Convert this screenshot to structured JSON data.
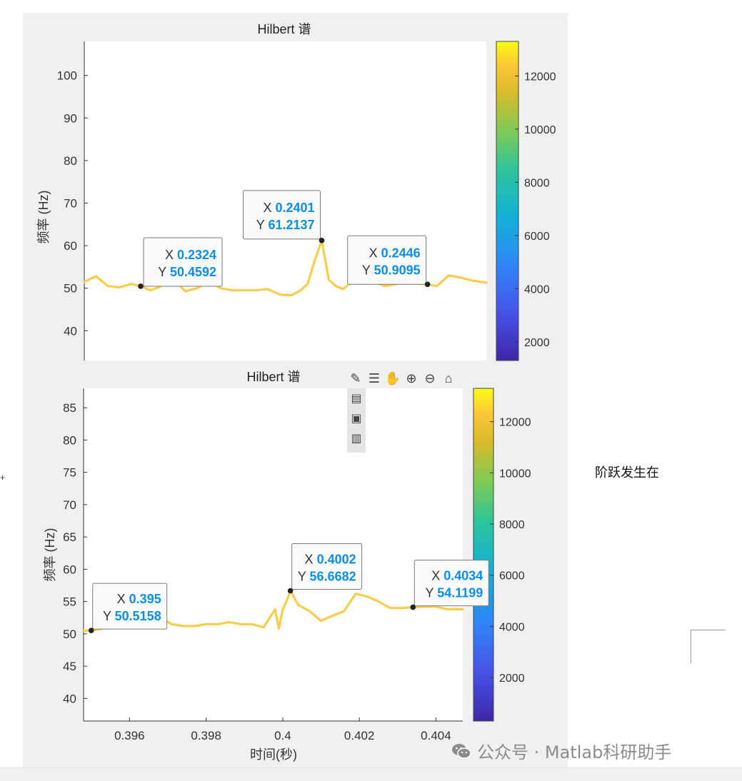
{
  "side_note": "阶跃发生在",
  "left_mark": "+",
  "watermark": {
    "text": "公众号 · Matlab科研助手",
    "icon": "wechat-icon"
  },
  "toolbar": {
    "icons": [
      "brush-icon",
      "legend-icon",
      "pan-hand-icon",
      "zoom-in-icon",
      "zoom-out-icon",
      "home-icon"
    ],
    "vertical_icons": [
      "save-icon",
      "copy-image-icon",
      "copy-vector-icon"
    ]
  },
  "colors": {
    "curve": "#f7cd4b",
    "datatip_value": "#0b8fe6",
    "marker": "#222222"
  },
  "chart_data": [
    {
      "type": "line",
      "title": "Hilbert 谱",
      "xlabel": "",
      "ylabel": "频率 (Hz)",
      "xlim": [
        0.23,
        0.2471
      ],
      "ylim": [
        33,
        108
      ],
      "yticks": [
        40,
        50,
        60,
        70,
        80,
        90,
        100
      ],
      "series": [
        {
          "x": [
            0.23,
            0.2305,
            0.231,
            0.2315,
            0.232,
            0.2324,
            0.2328,
            0.2333,
            0.2338,
            0.2343,
            0.2348,
            0.2353,
            0.2358,
            0.2363,
            0.2368,
            0.2373,
            0.2378,
            0.2383,
            0.2388,
            0.2392,
            0.2395,
            0.2398,
            0.2401,
            0.2404,
            0.2407,
            0.241,
            0.2414,
            0.2418,
            0.2423,
            0.2428,
            0.2433,
            0.2438,
            0.2442,
            0.2446,
            0.245,
            0.2455,
            0.246,
            0.2465,
            0.2471
          ],
          "y": [
            51.5,
            52.8,
            50.5,
            50.2,
            51.0,
            50.5,
            49.5,
            50.5,
            52.0,
            49.3,
            50.0,
            51.5,
            50.0,
            49.5,
            49.5,
            49.5,
            49.8,
            48.5,
            48.3,
            49.5,
            51.0,
            56.5,
            61.2,
            52.0,
            50.5,
            49.8,
            51.5,
            52.0,
            51.5,
            50.5,
            51.0,
            52.2,
            51.0,
            50.9,
            50.5,
            53.0,
            52.5,
            51.8,
            51.3
          ]
        }
      ],
      "colorbar": {
        "ticks": [
          2000,
          4000,
          6000,
          8000,
          10000,
          12000
        ],
        "range": [
          1300,
          13300
        ]
      },
      "datatips": [
        {
          "x": "0.2324",
          "y": "50.4592",
          "xv": 0.2324,
          "yv": 50.4592
        },
        {
          "x": "0.2401",
          "y": "61.2137",
          "xv": 0.2401,
          "yv": 61.2137
        },
        {
          "x": "0.2446",
          "y": "50.9095",
          "xv": 0.2446,
          "yv": 50.9095
        }
      ],
      "datatip_prefix": {
        "x": "X",
        "y": "Y"
      }
    },
    {
      "type": "line",
      "title": "Hilbert 谱",
      "xlabel": "时间(秒)",
      "ylabel": "频率 (Hz)",
      "xlim": [
        0.3948,
        0.4047
      ],
      "ylim": [
        36.5,
        88
      ],
      "xticks": [
        0.396,
        0.398,
        0.4,
        0.402,
        0.404
      ],
      "xtick_labels": [
        "0.396",
        "0.398",
        "0.4",
        "0.402",
        "0.404"
      ],
      "yticks": [
        40,
        45,
        50,
        55,
        60,
        65,
        70,
        75,
        80,
        85
      ],
      "series": [
        {
          "x": [
            0.3948,
            0.395,
            0.3953,
            0.3956,
            0.3959,
            0.3962,
            0.3965,
            0.3968,
            0.3971,
            0.3974,
            0.3977,
            0.398,
            0.3983,
            0.3986,
            0.3989,
            0.3992,
            0.3995,
            0.3998,
            0.3999,
            0.4,
            0.4001,
            0.4002,
            0.4004,
            0.4007,
            0.401,
            0.4013,
            0.4016,
            0.4019,
            0.4022,
            0.4025,
            0.4028,
            0.4031,
            0.4034,
            0.4037,
            0.404,
            0.4043,
            0.4047
          ],
          "y": [
            50.5,
            50.5,
            50.8,
            52.5,
            51.5,
            52.5,
            53.5,
            52.5,
            51.5,
            51.2,
            51.2,
            51.5,
            51.5,
            51.8,
            51.5,
            51.5,
            51.0,
            53.8,
            50.8,
            53.8,
            55.0,
            56.7,
            54.5,
            53.5,
            52.0,
            52.8,
            53.5,
            56.2,
            55.8,
            55.0,
            54.0,
            54.0,
            54.1,
            54.2,
            54.2,
            53.8,
            53.8
          ]
        }
      ],
      "colorbar": {
        "ticks": [
          2000,
          4000,
          6000,
          8000,
          10000,
          12000
        ],
        "range": [
          300,
          13300
        ]
      },
      "datatips": [
        {
          "x": "0.395",
          "y": "50.5158",
          "xv": 0.395,
          "yv": 50.5158
        },
        {
          "x": "0.4002",
          "y": "56.6682",
          "xv": 0.4002,
          "yv": 56.6682
        },
        {
          "x": "0.4034",
          "y": "54.1199",
          "xv": 0.4034,
          "yv": 54.1199
        }
      ],
      "datatip_prefix": {
        "x": "X",
        "y": "Y"
      }
    }
  ]
}
